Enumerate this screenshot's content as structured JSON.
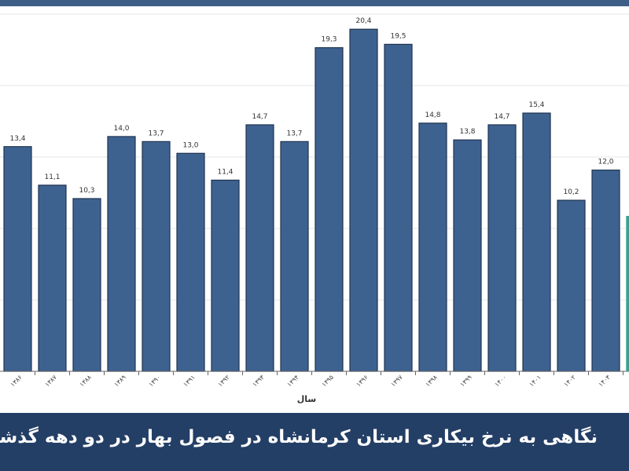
{
  "caption": "نگاهی به نرخ بیکاری استان کرمانشاه در فصول بهار در دو دهه گذشته",
  "chart_data": {
    "type": "bar",
    "xlabel": "سال",
    "categories": [
      "۱۳۸۶",
      "۱۳۸۷",
      "۱۳۸۸",
      "۱۳۸۹",
      "۱۳۹۰",
      "۱۳۹۱",
      "۱۳۹۲",
      "۱۳۹۳",
      "۱۳۹۴",
      "۱۳۹۵",
      "۱۳۹۶",
      "۱۳۹۷",
      "۱۳۹۸",
      "۱۳۹۹",
      "۱۴۰۰",
      "۱۴۰۱",
      "۱۴۰۲",
      "۱۴۰۳"
    ],
    "values": [
      13.4,
      11.1,
      10.3,
      14.0,
      13.7,
      13.0,
      11.4,
      14.7,
      13.7,
      19.3,
      20.4,
      19.5,
      14.8,
      13.8,
      14.7,
      15.4,
      10.2,
      12.0
    ],
    "value_labels": [
      "13,4",
      "11,1",
      "10,3",
      "14,0",
      "13,7",
      "13,0",
      "11,4",
      "14,7",
      "13,7",
      "19,3",
      "20,4",
      "19,5",
      "14,8",
      "13,8",
      "14,7",
      "15,4",
      "10,2",
      "12,0"
    ],
    "ylim": [
      0,
      21.3
    ],
    "bar_color": "#3e6290",
    "bar_edge_color": "#1f3450",
    "grid": true,
    "legend": "none"
  },
  "colors": {
    "caption_band": "#243f66",
    "top_bar": "#3d5f87"
  }
}
